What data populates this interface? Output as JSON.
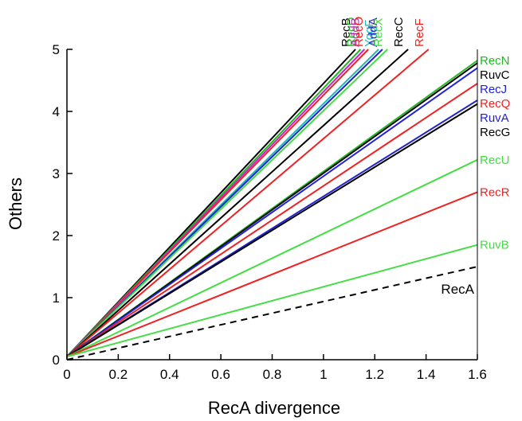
{
  "chart_data": {
    "type": "line",
    "title": "",
    "xlabel": "RecA divergence",
    "ylabel": "Others",
    "xlim": [
      0,
      1.6
    ],
    "ylim": [
      0,
      5
    ],
    "x_ticks": [
      "0",
      "0.2",
      "0.4",
      "0.6",
      "0.8",
      "1",
      "1.2",
      "1.4",
      "1.6"
    ],
    "y_ticks": [
      "0",
      "1",
      "2",
      "3",
      "4",
      "5"
    ],
    "grid": false,
    "legend": "labels at line ends (top and right edges)",
    "series": [
      {
        "name": "RecB",
        "color": "#000000",
        "label_pos": "top",
        "x": [
          0,
          1.125
        ],
        "y": [
          0.05,
          5
        ]
      },
      {
        "name": "RecD",
        "color": "#22b822",
        "label_pos": "top",
        "x": [
          0,
          1.145
        ],
        "y": [
          0.05,
          5
        ]
      },
      {
        "name": "AddB",
        "color": "#cc22cc",
        "label_pos": "top",
        "x": [
          0,
          1.16
        ],
        "y": [
          0.05,
          5
        ]
      },
      {
        "name": "RecO",
        "color": "#ee2222",
        "label_pos": "top",
        "x": [
          0,
          1.175
        ],
        "y": [
          0.05,
          5
        ]
      },
      {
        "name": "YqgF",
        "color": "#22b8b8",
        "label_pos": "top",
        "x": [
          0,
          1.215
        ],
        "y": [
          0.05,
          5
        ]
      },
      {
        "name": "AddA",
        "color": "#2222cc",
        "label_pos": "top",
        "x": [
          0,
          1.23
        ],
        "y": [
          0.05,
          5
        ]
      },
      {
        "name": "RecX",
        "color": "#44dd44",
        "label_pos": "top",
        "x": [
          0,
          1.25
        ],
        "y": [
          0.05,
          5
        ]
      },
      {
        "name": "RecC",
        "color": "#000000",
        "label_pos": "top",
        "x": [
          0,
          1.33
        ],
        "y": [
          0.05,
          5
        ]
      },
      {
        "name": "RecF",
        "color": "#ee2222",
        "label_pos": "top",
        "x": [
          0,
          1.41
        ],
        "y": [
          0.05,
          5
        ]
      },
      {
        "name": "RecN",
        "color": "#22b822",
        "label_pos": "right",
        "x": [
          0,
          1.6
        ],
        "y": [
          0.05,
          4.82
        ]
      },
      {
        "name": "RuvC",
        "color": "#000000",
        "label_pos": "right",
        "x": [
          0,
          1.6
        ],
        "y": [
          0.05,
          4.78
        ]
      },
      {
        "name": "RecJ",
        "color": "#2222dd",
        "label_pos": "right",
        "x": [
          0,
          1.6
        ],
        "y": [
          0.05,
          4.7
        ]
      },
      {
        "name": "RecQ",
        "color": "#ee2222",
        "label_pos": "right",
        "x": [
          0,
          1.6
        ],
        "y": [
          0.05,
          4.45
        ]
      },
      {
        "name": "RuvA",
        "color": "#2222cc",
        "label_pos": "right",
        "x": [
          0,
          1.6
        ],
        "y": [
          0.05,
          4.18
        ]
      },
      {
        "name": "RecG",
        "color": "#000000",
        "label_pos": "right",
        "x": [
          0,
          1.6
        ],
        "y": [
          0.05,
          4.12
        ]
      },
      {
        "name": "RecU",
        "color": "#44dd44",
        "label_pos": "right",
        "x": [
          0,
          1.6
        ],
        "y": [
          0.05,
          3.22
        ]
      },
      {
        "name": "RecR",
        "color": "#ee2222",
        "label_pos": "right",
        "x": [
          0,
          1.6
        ],
        "y": [
          0.05,
          2.7
        ]
      },
      {
        "name": "RuvB",
        "color": "#44dd44",
        "label_pos": "right",
        "x": [
          0,
          1.6
        ],
        "y": [
          0.05,
          1.85
        ]
      },
      {
        "name": "RecA",
        "color": "#000000",
        "dashed": true,
        "label_pos": "inside",
        "x": [
          0,
          1.6
        ],
        "y": [
          0,
          1.5
        ]
      }
    ]
  }
}
